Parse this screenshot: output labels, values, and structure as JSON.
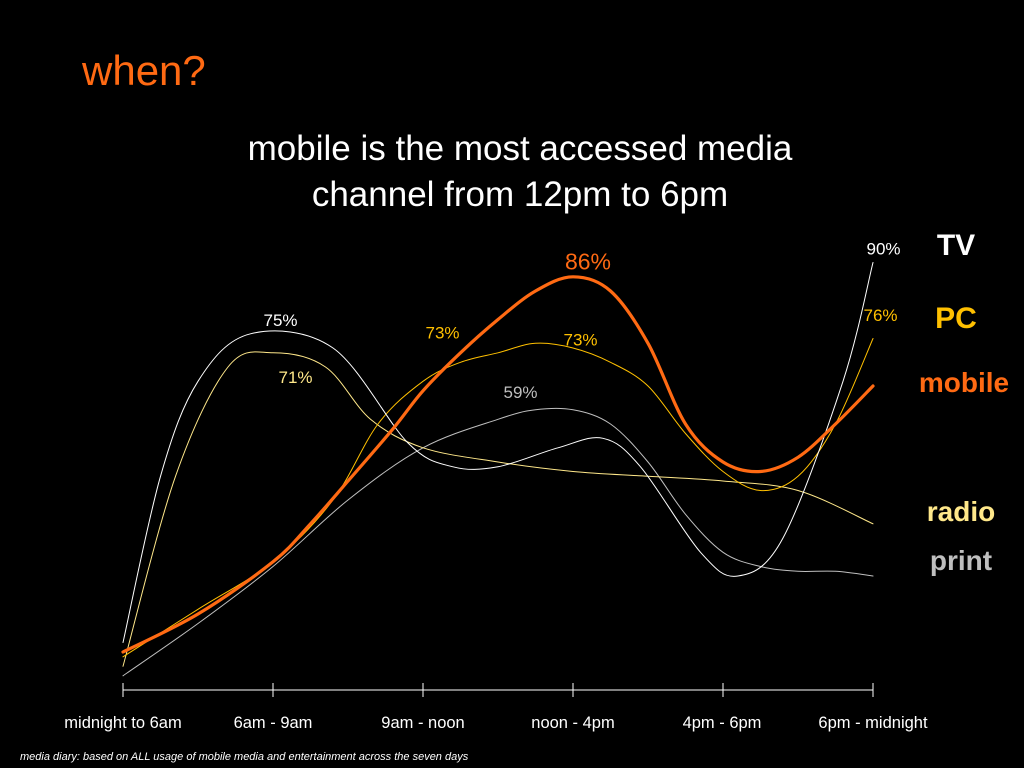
{
  "slide": {
    "title": "when?",
    "headline_line1": "mobile is the most accessed media",
    "headline_line2": "channel from 12pm to 6pm",
    "footnote": "media diary: based on ALL usage of mobile media and entertainment across the seven days"
  },
  "chart_data": {
    "type": "line",
    "title": "",
    "xlabel": "",
    "ylabel": "",
    "categories": [
      "midnight to 6am",
      "6am - 9am",
      "9am - noon",
      "noon - 4pm",
      "4pm - 6pm",
      "6pm - midnight"
    ],
    "ylim": [
      0,
      100
    ],
    "grid": false,
    "legend": "right",
    "series": [
      {
        "name": "TV",
        "color": "#ffffff",
        "label_color": "#ffffff",
        "x": [
          0,
          0.25,
          0.5,
          0.85,
          1.4,
          1.9,
          2.2,
          2.5,
          2.9,
          3.2,
          3.45,
          3.85,
          4.1,
          4.4,
          4.8,
          5.0
        ],
        "y": [
          10,
          45,
          65,
          75,
          72,
          52,
          47,
          47,
          51,
          53,
          47,
          29,
          24,
          32,
          65,
          90
        ],
        "value_labels": [
          {
            "x": 1.05,
            "y": 75,
            "text": "75%"
          },
          {
            "x": 5.07,
            "y": 90,
            "text": "90%"
          }
        ]
      },
      {
        "name": "PC",
        "color": "#ffc000",
        "label_color": "#ffc000",
        "x": [
          0,
          0.5,
          1.0,
          1.4,
          1.7,
          2.0,
          2.25,
          2.5,
          2.75,
          3.0,
          3.25,
          3.5,
          3.75,
          4.0,
          4.25,
          4.5,
          4.75,
          5.0
        ],
        "y": [
          7,
          17,
          27,
          40,
          56,
          65,
          69,
          71,
          73,
          72,
          69,
          64,
          54,
          46,
          42,
          45,
          56,
          74
        ],
        "value_labels": [
          {
            "x": 2.13,
            "y": 73,
            "text": "73%"
          },
          {
            "x": 3.05,
            "y": 73,
            "text": "73%"
          },
          {
            "x": 5.05,
            "y": 76,
            "text": "76%"
          }
        ]
      },
      {
        "name": "mobile",
        "color": "#ff6a13",
        "label_color": "#ff6a13",
        "x": [
          0,
          0.5,
          1.0,
          1.25,
          1.5,
          1.8,
          2.0,
          2.25,
          2.5,
          2.75,
          3.0,
          3.25,
          3.5,
          3.75,
          4.0,
          4.25,
          4.5,
          4.75,
          5.0
        ],
        "y": [
          8,
          16,
          27,
          35,
          44,
          55,
          63,
          71,
          78,
          84,
          87,
          84,
          73,
          56,
          48,
          46,
          49,
          56,
          64
        ],
        "value_labels": [
          {
            "x": 3.1,
            "y": 86,
            "text": "86%"
          }
        ]
      },
      {
        "name": "radio",
        "color": "#ffe88a",
        "label_color": "#ffe88a",
        "x": [
          0,
          0.35,
          0.7,
          1.0,
          1.35,
          1.65,
          2.0,
          2.5,
          3.0,
          3.5,
          4.0,
          4.5,
          5.0
        ],
        "y": [
          5,
          45,
          68,
          71,
          68,
          57,
          51,
          48,
          46,
          45,
          44,
          42,
          35
        ],
        "value_labels": [
          {
            "x": 1.15,
            "y": 71,
            "text": "71%"
          }
        ]
      },
      {
        "name": "print",
        "color": "#bfbfbf",
        "label_color": "#bfbfbf",
        "x": [
          0,
          0.5,
          1.0,
          1.5,
          2.0,
          2.5,
          2.75,
          3.0,
          3.25,
          3.5,
          3.75,
          4.0,
          4.25,
          4.5,
          4.75,
          5.0
        ],
        "y": [
          3,
          14,
          26,
          40,
          51,
          57,
          59,
          59,
          56,
          48,
          37,
          29,
          26,
          25,
          25,
          24
        ],
        "value_labels": [
          {
            "x": 2.65,
            "y": 59,
            "text": "59%"
          }
        ]
      }
    ]
  }
}
